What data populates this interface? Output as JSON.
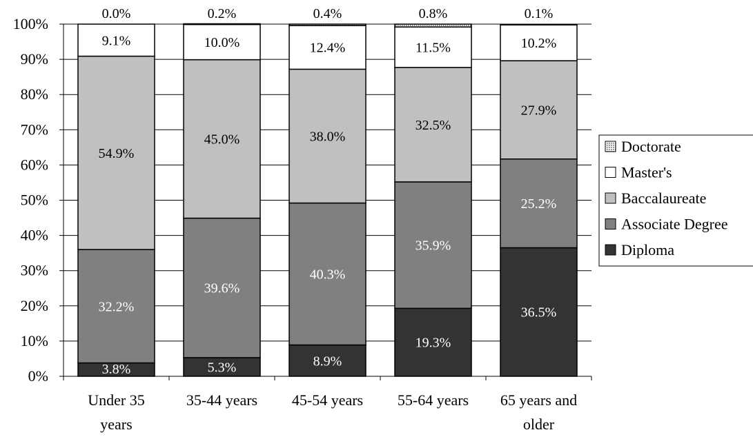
{
  "chart_data": {
    "type": "bar",
    "stacked": true,
    "categories": [
      [
        "Under 35",
        "years"
      ],
      [
        "35-44 years"
      ],
      [
        "45-54 years"
      ],
      [
        "55-64 years"
      ],
      [
        "65 years and",
        "older"
      ]
    ],
    "series": [
      {
        "name": "Diploma",
        "values": [
          3.8,
          5.3,
          8.9,
          19.3,
          36.5
        ],
        "labels": [
          "3.8%",
          "5.3%",
          "8.9%",
          "19.3%",
          "36.5%"
        ],
        "color": "#333333",
        "label_color": "#ffffff"
      },
      {
        "name": "Associate Degree",
        "values": [
          32.2,
          39.6,
          40.3,
          35.9,
          25.2
        ],
        "labels": [
          "32.2%",
          "39.6%",
          "40.3%",
          "35.9%",
          "25.2%"
        ],
        "color": "#808080",
        "label_color": "#ffffff"
      },
      {
        "name": "Baccalaureate",
        "values": [
          54.9,
          45.0,
          38.0,
          32.5,
          27.9
        ],
        "labels": [
          "54.9%",
          "45.0%",
          "38.0%",
          "32.5%",
          "27.9%"
        ],
        "color": "#c0c0c0",
        "label_color": "#000000"
      },
      {
        "name": "Master's",
        "values": [
          9.1,
          10.0,
          12.4,
          11.5,
          10.2
        ],
        "labels": [
          "9.1%",
          "10.0%",
          "12.4%",
          "11.5%",
          "10.2%"
        ],
        "color": "#ffffff",
        "label_color": "#000000"
      },
      {
        "name": "Doctorate",
        "values": [
          0.0,
          0.2,
          0.4,
          0.8,
          0.1
        ],
        "labels": [
          "0.0%",
          "0.2%",
          "0.4%",
          "0.8%",
          "0.1%"
        ],
        "color": "#d8d8d8",
        "pattern": "dotted",
        "label_color": "#000000"
      }
    ],
    "ylim": [
      0,
      100
    ],
    "yticks": [
      "0%",
      "10%",
      "20%",
      "30%",
      "40%",
      "50%",
      "60%",
      "70%",
      "80%",
      "90%",
      "100%"
    ],
    "title": "",
    "xlabel": "",
    "ylabel": "",
    "legend": {
      "position": "right",
      "order": [
        "Doctorate",
        "Master's",
        "Baccalaureate",
        "Associate Degree",
        "Diploma"
      ]
    },
    "grid": true
  }
}
